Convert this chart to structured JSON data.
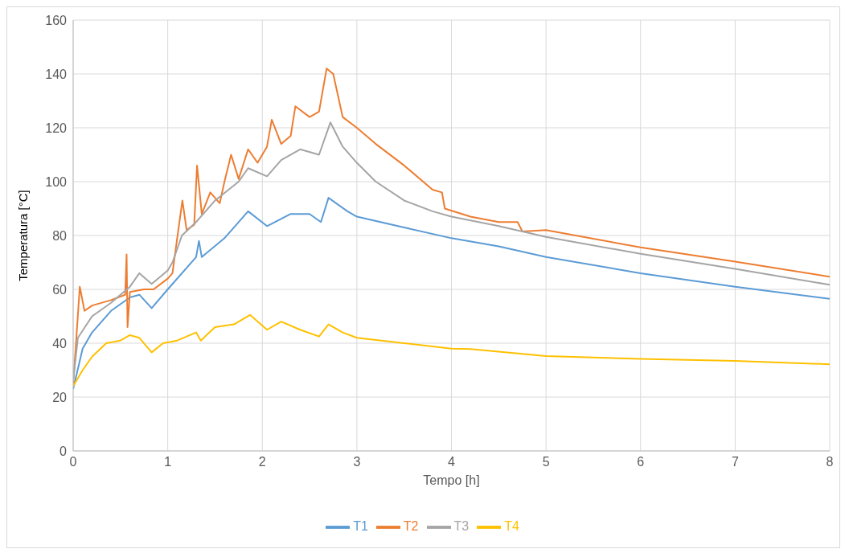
{
  "chart_data": {
    "type": "line",
    "xlabel": "Tempo [h]",
    "ylabel": "Temperatura [°C]",
    "xlim": [
      0,
      8
    ],
    "xticks": [
      0,
      1,
      2,
      3,
      4,
      5,
      6,
      7,
      8
    ],
    "ylim": [
      0,
      160
    ],
    "yticks": [
      0,
      20,
      40,
      60,
      80,
      100,
      120,
      140,
      160
    ],
    "grid": true,
    "legend": "bottom",
    "marker": "none",
    "line_style": "solid",
    "series": [
      {
        "name": "T1",
        "color": "#5b9bd5",
        "x": [
          0,
          0.1,
          0.2,
          0.4,
          0.6,
          0.7,
          0.83,
          1.0,
          1.3,
          1.33,
          1.36,
          1.6,
          1.85,
          2.05,
          2.3,
          2.5,
          2.62,
          2.7,
          2.9,
          3.0,
          3.5,
          4.0,
          4.5,
          5,
          6,
          7,
          8
        ],
        "values": [
          23,
          38,
          44,
          52,
          57,
          58,
          53,
          60,
          72,
          78,
          72,
          79,
          89,
          83.5,
          88,
          88,
          85,
          94,
          89,
          87,
          83,
          79,
          76,
          72,
          66,
          61,
          56.5
        ]
      },
      {
        "name": "T2",
        "color": "#ed7d31",
        "x": [
          0,
          0.03,
          0.07,
          0.12,
          0.2,
          0.4,
          0.55,
          0.565,
          0.575,
          0.6,
          0.75,
          0.85,
          1.0,
          1.05,
          1.1,
          1.155,
          1.2,
          1.28,
          1.31,
          1.36,
          1.45,
          1.55,
          1.6,
          1.67,
          1.75,
          1.85,
          1.95,
          2.05,
          2.1,
          2.2,
          2.3,
          2.35,
          2.5,
          2.6,
          2.68,
          2.75,
          2.85,
          3.0,
          3.2,
          3.5,
          3.8,
          3.9,
          3.93,
          4.2,
          4.5,
          4.7,
          4.75,
          5,
          6,
          7,
          8
        ],
        "values": [
          25,
          40,
          61,
          52,
          54,
          56,
          58,
          73,
          46,
          59,
          60,
          60,
          64,
          66,
          79,
          93,
          82,
          84,
          106,
          88,
          96,
          92,
          100,
          110,
          101,
          112,
          107,
          113,
          123,
          114,
          117,
          128,
          124,
          126,
          142,
          140,
          124,
          120,
          114,
          106,
          97,
          96,
          90,
          87,
          85,
          85,
          81.5,
          82,
          75.6,
          70.3,
          64.7
        ]
      },
      {
        "name": "T3",
        "color": "#a5a5a5",
        "x": [
          0,
          0.05,
          0.2,
          0.4,
          0.6,
          0.7,
          0.83,
          1.0,
          1.05,
          1.15,
          1.3,
          1.5,
          1.75,
          1.85,
          2.05,
          2.2,
          2.4,
          2.6,
          2.72,
          2.85,
          3.0,
          3.2,
          3.5,
          3.8,
          4.0,
          4.5,
          5,
          6,
          7,
          8
        ],
        "values": [
          26,
          42,
          50,
          55,
          61,
          66,
          62,
          67,
          70,
          80,
          85,
          93,
          100,
          105,
          102,
          108,
          112,
          110,
          122,
          113,
          107,
          100,
          93,
          89,
          87,
          83.5,
          79.5,
          73.2,
          67.6,
          61.7
        ]
      },
      {
        "name": "T4",
        "color": "#ffc000",
        "x": [
          0,
          0.05,
          0.1,
          0.2,
          0.35,
          0.5,
          0.6,
          0.7,
          0.83,
          0.95,
          1.1,
          1.3,
          1.35,
          1.5,
          1.7,
          1.87,
          2.05,
          2.2,
          2.4,
          2.6,
          2.7,
          2.85,
          3.0,
          3.5,
          4.0,
          4.2,
          5,
          6,
          7,
          8
        ],
        "values": [
          24,
          27,
          30,
          35,
          40,
          41,
          43,
          42,
          36.6,
          40,
          41,
          44,
          41,
          46,
          47,
          50.5,
          45,
          48,
          45,
          42.5,
          47,
          44,
          42,
          40,
          38,
          37.8,
          35.2,
          34.2,
          33.4,
          32.2
        ]
      }
    ]
  }
}
